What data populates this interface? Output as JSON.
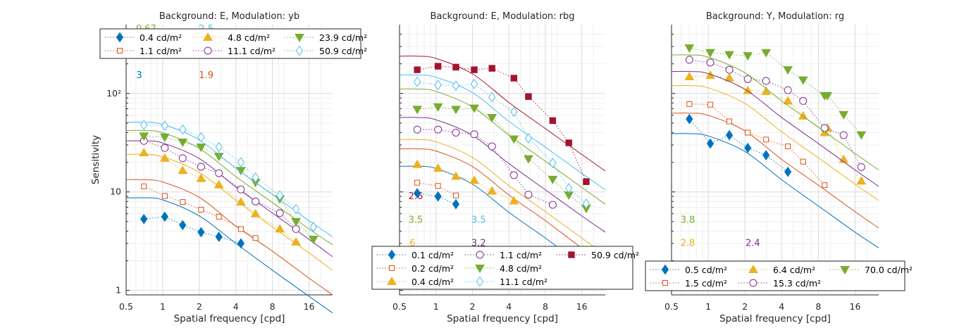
{
  "colors": {
    "blue": "#0072BD",
    "orange": "#D95319",
    "yellow": "#EDB120",
    "purple": "#7E2F8E",
    "green": "#77AC30",
    "lightblue": "#4DBEEE",
    "darkred": "#A2142F"
  },
  "chart_data": [
    {
      "type": "scatter",
      "title": "Background: E, Modulation: yb",
      "xlabel": "Spatial frequency [cpd]",
      "ylabel": "Sensitivity",
      "xscale": "log",
      "yscale": "log",
      "xlim": [
        0.5,
        25
      ],
      "ylim": [
        0.9,
        500
      ],
      "xticks": [
        "0.5",
        "1",
        "2",
        "4",
        "8",
        "16"
      ],
      "yticks": [
        "1",
        "10",
        "10²"
      ],
      "grid": true,
      "legend": {
        "placement": "top",
        "columns": 3
      },
      "fit_x": [
        0.5,
        0.7,
        1,
        2,
        4,
        8,
        16,
        25
      ],
      "series": [
        {
          "name": "0.4 cd/m²",
          "color": "blue",
          "marker": "diamond",
          "filled": true,
          "x": [
            0.7,
            1.04,
            1.46,
            2.07,
            2.9,
            4.4
          ],
          "y": [
            5.3,
            5.6,
            4.6,
            3.9,
            3.5,
            3.0
          ],
          "fit": [
            8.7,
            8.7,
            8.3,
            5.7,
            3.0,
            1.6,
            0.87,
            0.59
          ]
        },
        {
          "name": "1.1 cd/m²",
          "color": "orange",
          "marker": "square",
          "filled": false,
          "x": [
            0.7,
            1.04,
            1.46,
            2.07,
            2.9,
            4.4,
            5.8
          ],
          "y": [
            11.4,
            9.1,
            7.9,
            6.6,
            5.6,
            4.2,
            3.4
          ],
          "fit": [
            13.3,
            13.3,
            12.6,
            8.8,
            4.5,
            2.5,
            1.33,
            0.9
          ]
        },
        {
          "name": "4.8 cd/m²",
          "color": "yellow",
          "marker": "triangle-up",
          "filled": true,
          "x": [
            0.7,
            1.04,
            1.46,
            2.07,
            2.9,
            4.4,
            5.8,
            9.2,
            12.5
          ],
          "y": [
            25,
            22,
            16.5,
            13.7,
            11.8,
            7.9,
            6.0,
            4.2,
            3.1
          ],
          "fit": [
            24,
            24,
            22.8,
            15.8,
            8.2,
            4.4,
            2.4,
            1.6
          ]
        },
        {
          "name": "11.1 cd/m²",
          "color": "purple",
          "marker": "circle",
          "filled": false,
          "x": [
            0.7,
            1.04,
            1.46,
            2.07,
            2.9,
            4.4,
            5.8,
            9.2,
            12.5
          ],
          "y": [
            33,
            28,
            22,
            18,
            15.5,
            10.6,
            8,
            6.1,
            4.2
          ],
          "fit": [
            33,
            33,
            31.4,
            21.8,
            11.2,
            6.1,
            3.3,
            2.2
          ]
        },
        {
          "name": "23.9 cd/m²",
          "color": "green",
          "marker": "triangle-down",
          "filled": true,
          "x": [
            0.7,
            1.04,
            1.46,
            2.07,
            2.9,
            4.4,
            5.8,
            9.2,
            12.5,
            17.4
          ],
          "y": [
            37,
            36,
            32,
            28.5,
            23,
            16.5,
            12.5,
            8.5,
            5,
            3.3
          ],
          "fit": [
            42,
            42,
            39.9,
            27.7,
            14.3,
            7.8,
            4.2,
            2.9
          ]
        },
        {
          "name": "50.9 cd/m²",
          "color": "lightblue",
          "marker": "diamond",
          "filled": false,
          "x": [
            0.7,
            1.04,
            1.46,
            2.07,
            2.9,
            4.4,
            5.8,
            9.2,
            12.5,
            17.4
          ],
          "y": [
            48,
            47,
            43,
            36,
            28.5,
            20,
            14,
            9.2,
            6.7,
            4.4
          ],
          "fit": [
            51,
            51,
            48.5,
            33.7,
            17.3,
            9.4,
            5.1,
            3.5
          ]
        }
      ],
      "legend_order": [
        0,
        1,
        2,
        3,
        4,
        5
      ],
      "annotations": [
        {
          "text": "0.67",
          "color": "green",
          "x": 0.73,
          "y": 460
        },
        {
          "text": "2.5",
          "color": "lightblue",
          "x": 2.28,
          "y": 460
        },
        {
          "text": "3",
          "color": "blue",
          "x": 0.64,
          "y": 156
        },
        {
          "text": "1.9",
          "color": "orange",
          "x": 2.28,
          "y": 156
        }
      ]
    },
    {
      "type": "scatter",
      "title": "Background: E, Modulation: rbg",
      "xlabel": "Spatial frequency [cpd]",
      "ylabel": "",
      "xscale": "log",
      "yscale": "log",
      "xlim": [
        0.5,
        25
      ],
      "ylim": [
        0.9,
        500
      ],
      "xticks": [
        "0.5",
        "1",
        "2",
        "4",
        "8",
        "16"
      ],
      "yticks": [],
      "grid": true,
      "legend": {
        "placement": "bottom",
        "columns": 3
      },
      "fit_x": [
        0.5,
        0.7,
        1,
        2,
        4,
        8,
        16,
        25
      ],
      "series": [
        {
          "name": "0.1 cd/m²",
          "color": "blue",
          "marker": "diamond",
          "filled": true,
          "x": [
            0.7,
            1.04,
            1.46
          ],
          "y": [
            9.7,
            9.0,
            7.5
          ],
          "fit": [
            18.2,
            18.2,
            17.3,
            12,
            6.2,
            3.4,
            1.8,
            1.2
          ]
        },
        {
          "name": "0.2 cd/m²",
          "color": "orange",
          "marker": "square",
          "filled": false,
          "x": [
            0.7,
            1.04,
            1.46
          ],
          "y": [
            12.4,
            11.5,
            9.2
          ],
          "fit": [
            27.4,
            27.4,
            26,
            18.1,
            9.3,
            5.1,
            2.7,
            1.9
          ]
        },
        {
          "name": "0.4 cd/m²",
          "color": "yellow",
          "marker": "triangle-up",
          "filled": true,
          "x": [
            0.7,
            1.04,
            1.46,
            2.07,
            2.9,
            4.4
          ],
          "y": [
            19,
            17.4,
            14.4,
            13.1,
            10.2,
            8.1
          ],
          "fit": [
            34,
            34,
            32.3,
            22.4,
            11.6,
            6.3,
            3.4,
            2.3
          ]
        },
        {
          "name": "1.1 cd/m²",
          "color": "purple",
          "marker": "circle",
          "filled": false,
          "x": [
            0.7,
            1.04,
            1.46,
            2.07,
            2.9,
            4.4,
            5.8,
            9.2
          ],
          "y": [
            43,
            43,
            40,
            38.5,
            29,
            14.8,
            9.4,
            7.4
          ],
          "fit": [
            57,
            57,
            54,
            37.6,
            19.4,
            10.5,
            5.7,
            3.9
          ]
        },
        {
          "name": "4.8 cd/m²",
          "color": "green",
          "marker": "triangle-down",
          "filled": true,
          "x": [
            0.7,
            1.04,
            1.46,
            2.07,
            2.9,
            4.4,
            5.8,
            9.2,
            12.5,
            17.4
          ],
          "y": [
            69,
            73,
            69,
            71,
            57,
            34.5,
            21.7,
            13.4,
            9.3,
            6.8
          ],
          "fit": [
            111,
            111,
            105,
            73,
            37.7,
            20.5,
            11.1,
            7.5
          ]
        },
        {
          "name": "11.1 cd/m²",
          "color": "lightblue",
          "marker": "diamond",
          "filled": false,
          "x": [
            0.7,
            1.04,
            1.46,
            2.07,
            2.9,
            4.4,
            5.8,
            9.2,
            12.5,
            17.4
          ],
          "y": [
            131,
            122,
            120,
            125,
            92,
            65,
            35,
            19.7,
            10.9,
            7.6
          ],
          "fit": [
            154,
            154,
            146,
            102,
            52,
            28.5,
            15.4,
            10.5
          ]
        },
        {
          "name": "50.9 cd/m²",
          "color": "darkred",
          "marker": "square",
          "filled": true,
          "x": [
            0.7,
            1.04,
            1.46,
            2.07,
            2.9,
            4.4,
            5.8,
            9.2,
            12.5,
            17.4
          ],
          "y": [
            174,
            189,
            185,
            174,
            180,
            143,
            93,
            53,
            31.5,
            12.7
          ],
          "fit": [
            239,
            239,
            227,
            158,
            81,
            44,
            24,
            16.3
          ]
        }
      ],
      "legend_order": [
        0,
        1,
        2,
        3,
        4,
        5,
        6
      ],
      "annotations": [
        {
          "text": "2.6",
          "color": "darkred",
          "x": 0.68,
          "y": 9.2
        },
        {
          "text": "3.5",
          "color": "green",
          "x": 0.68,
          "y": 5.3
        },
        {
          "text": "3.5",
          "color": "lightblue",
          "x": 2.25,
          "y": 5.3
        },
        {
          "text": "6",
          "color": "yellow",
          "x": 0.64,
          "y": 3.06
        },
        {
          "text": "3.2",
          "color": "purple",
          "x": 2.25,
          "y": 3.06
        }
      ]
    },
    {
      "type": "scatter",
      "title": "Background: Y, Modulation: rg",
      "xlabel": "Spatial frequency [cpd]",
      "ylabel": "",
      "xscale": "log",
      "yscale": "log",
      "xlim": [
        0.5,
        25
      ],
      "ylim": [
        0.9,
        500
      ],
      "xticks": [
        "0.5",
        "1",
        "2",
        "4",
        "8",
        "16"
      ],
      "yticks": [],
      "grid": true,
      "legend": {
        "placement": "bottom",
        "columns": 3
      },
      "fit_x": [
        0.5,
        0.7,
        1,
        2,
        4,
        8,
        16,
        25
      ],
      "series": [
        {
          "name": "0.5 cd/m²",
          "color": "blue",
          "marker": "diamond",
          "filled": true,
          "x": [
            0.7,
            1.04,
            1.49,
            2.11,
            2.98,
            4.5
          ],
          "y": [
            55,
            31,
            37.7,
            28,
            23.6,
            16
          ],
          "fit": [
            39,
            39,
            37,
            25.7,
            13.3,
            7.2,
            3.9,
            2.7
          ]
        },
        {
          "name": "1.5 cd/m²",
          "color": "orange",
          "marker": "square",
          "filled": false,
          "x": [
            0.7,
            1.04,
            1.49,
            2.11,
            2.98,
            4.5,
            6.0,
            9.0
          ],
          "y": [
            78,
            77,
            52,
            40,
            34,
            29,
            20.3,
            11.7
          ],
          "fit": [
            63,
            63,
            60,
            41.6,
            21.4,
            11.7,
            6.3,
            4.3
          ]
        },
        {
          "name": "6.4 cd/m²",
          "color": "yellow",
          "marker": "triangle-up",
          "filled": true,
          "x": [
            0.7,
            1.04,
            1.49,
            2.11,
            2.98,
            4.5,
            6.0,
            9.0,
            9.5,
            12.9,
            18
          ],
          "y": [
            148,
            153,
            144,
            107,
            105,
            84,
            59,
            40,
            44.5,
            21.4,
            12.9
          ],
          "fit": [
            120,
            120,
            114,
            79,
            40.8,
            22.2,
            12,
            8.2
          ]
        },
        {
          "name": "15.3 cd/m²",
          "color": "purple",
          "marker": "circle",
          "filled": false,
          "x": [
            0.7,
            1.04,
            1.49,
            2.11,
            2.98,
            4.5,
            6.0,
            9.0,
            12.9,
            18
          ],
          "y": [
            220,
            206,
            174,
            140,
            134,
            108,
            84,
            44.5,
            37.7,
            17.9
          ],
          "fit": [
            167,
            167,
            159,
            110,
            57,
            31,
            16.7,
            11.4
          ]
        },
        {
          "name": "70.0 cd/m²",
          "color": "green",
          "marker": "triangle-down",
          "filled": true,
          "x": [
            0.7,
            1.04,
            1.49,
            2.11,
            2.98,
            4.5,
            6.0,
            9.0,
            9.5,
            12.9,
            18
          ],
          "y": [
            290,
            260,
            248,
            242,
            260,
            174,
            137,
            95,
            95,
            61,
            38
          ],
          "fit": [
            246,
            246,
            234,
            162,
            84,
            45.5,
            24.6,
            16.7
          ]
        }
      ],
      "legend_order": [
        0,
        1,
        2,
        3,
        4
      ],
      "annotations": [
        {
          "text": "3.8",
          "color": "green",
          "x": 0.68,
          "y": 5.3
        },
        {
          "text": "2.8",
          "color": "yellow",
          "x": 0.68,
          "y": 3.06
        },
        {
          "text": "2.4",
          "color": "purple",
          "x": 2.32,
          "y": 3.06
        }
      ]
    }
  ]
}
